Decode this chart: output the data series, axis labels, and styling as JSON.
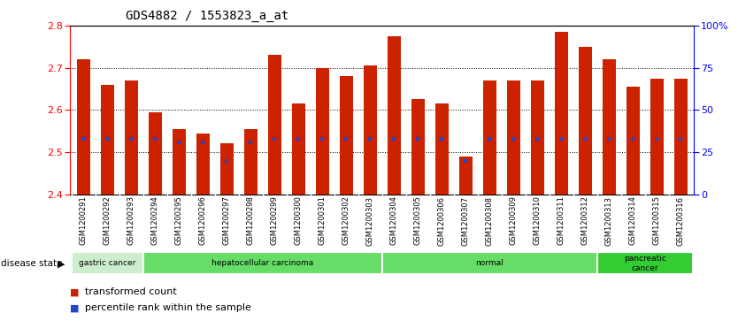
{
  "title": "GDS4882 / 1553823_a_at",
  "samples": [
    "GSM1200291",
    "GSM1200292",
    "GSM1200293",
    "GSM1200294",
    "GSM1200295",
    "GSM1200296",
    "GSM1200297",
    "GSM1200298",
    "GSM1200299",
    "GSM1200300",
    "GSM1200301",
    "GSM1200302",
    "GSM1200303",
    "GSM1200304",
    "GSM1200305",
    "GSM1200306",
    "GSM1200307",
    "GSM1200308",
    "GSM1200309",
    "GSM1200310",
    "GSM1200311",
    "GSM1200312",
    "GSM1200313",
    "GSM1200314",
    "GSM1200315",
    "GSM1200316"
  ],
  "transformed_count": [
    2.72,
    2.66,
    2.67,
    2.595,
    2.555,
    2.545,
    2.52,
    2.555,
    2.73,
    2.615,
    2.7,
    2.68,
    2.705,
    2.775,
    2.625,
    2.615,
    2.49,
    2.67,
    2.67,
    2.67,
    2.785,
    2.75,
    2.72,
    2.655,
    2.675,
    2.675
  ],
  "percentile_rank": [
    33,
    33,
    33,
    33,
    31,
    31,
    20,
    31,
    33,
    33,
    33,
    33,
    33,
    33,
    33,
    33,
    20,
    33,
    33,
    33,
    33,
    33,
    33,
    33,
    33,
    33
  ],
  "ylim_left": [
    2.4,
    2.8
  ],
  "ylim_right": [
    0,
    100
  ],
  "yticks_left": [
    2.4,
    2.5,
    2.6,
    2.7,
    2.8
  ],
  "yticks_right": [
    0,
    25,
    50,
    75,
    100
  ],
  "ytick_labels_right": [
    "0",
    "25",
    "50",
    "75",
    "100%"
  ],
  "bar_color": "#cc2200",
  "percentile_color": "#2244cc",
  "disease_groups": [
    {
      "label": "gastric cancer",
      "start": 0,
      "end": 3,
      "color": "#cceecc"
    },
    {
      "label": "hepatocellular carcinoma",
      "start": 3,
      "end": 13,
      "color": "#66dd66"
    },
    {
      "label": "normal",
      "start": 13,
      "end": 22,
      "color": "#66dd66"
    },
    {
      "label": "pancreatic\ncancer",
      "start": 22,
      "end": 26,
      "color": "#33cc33"
    }
  ],
  "background_color": "#ffffff",
  "base_value": 2.4,
  "bar_width": 0.55,
  "xtick_bg": "#d8d8d8"
}
